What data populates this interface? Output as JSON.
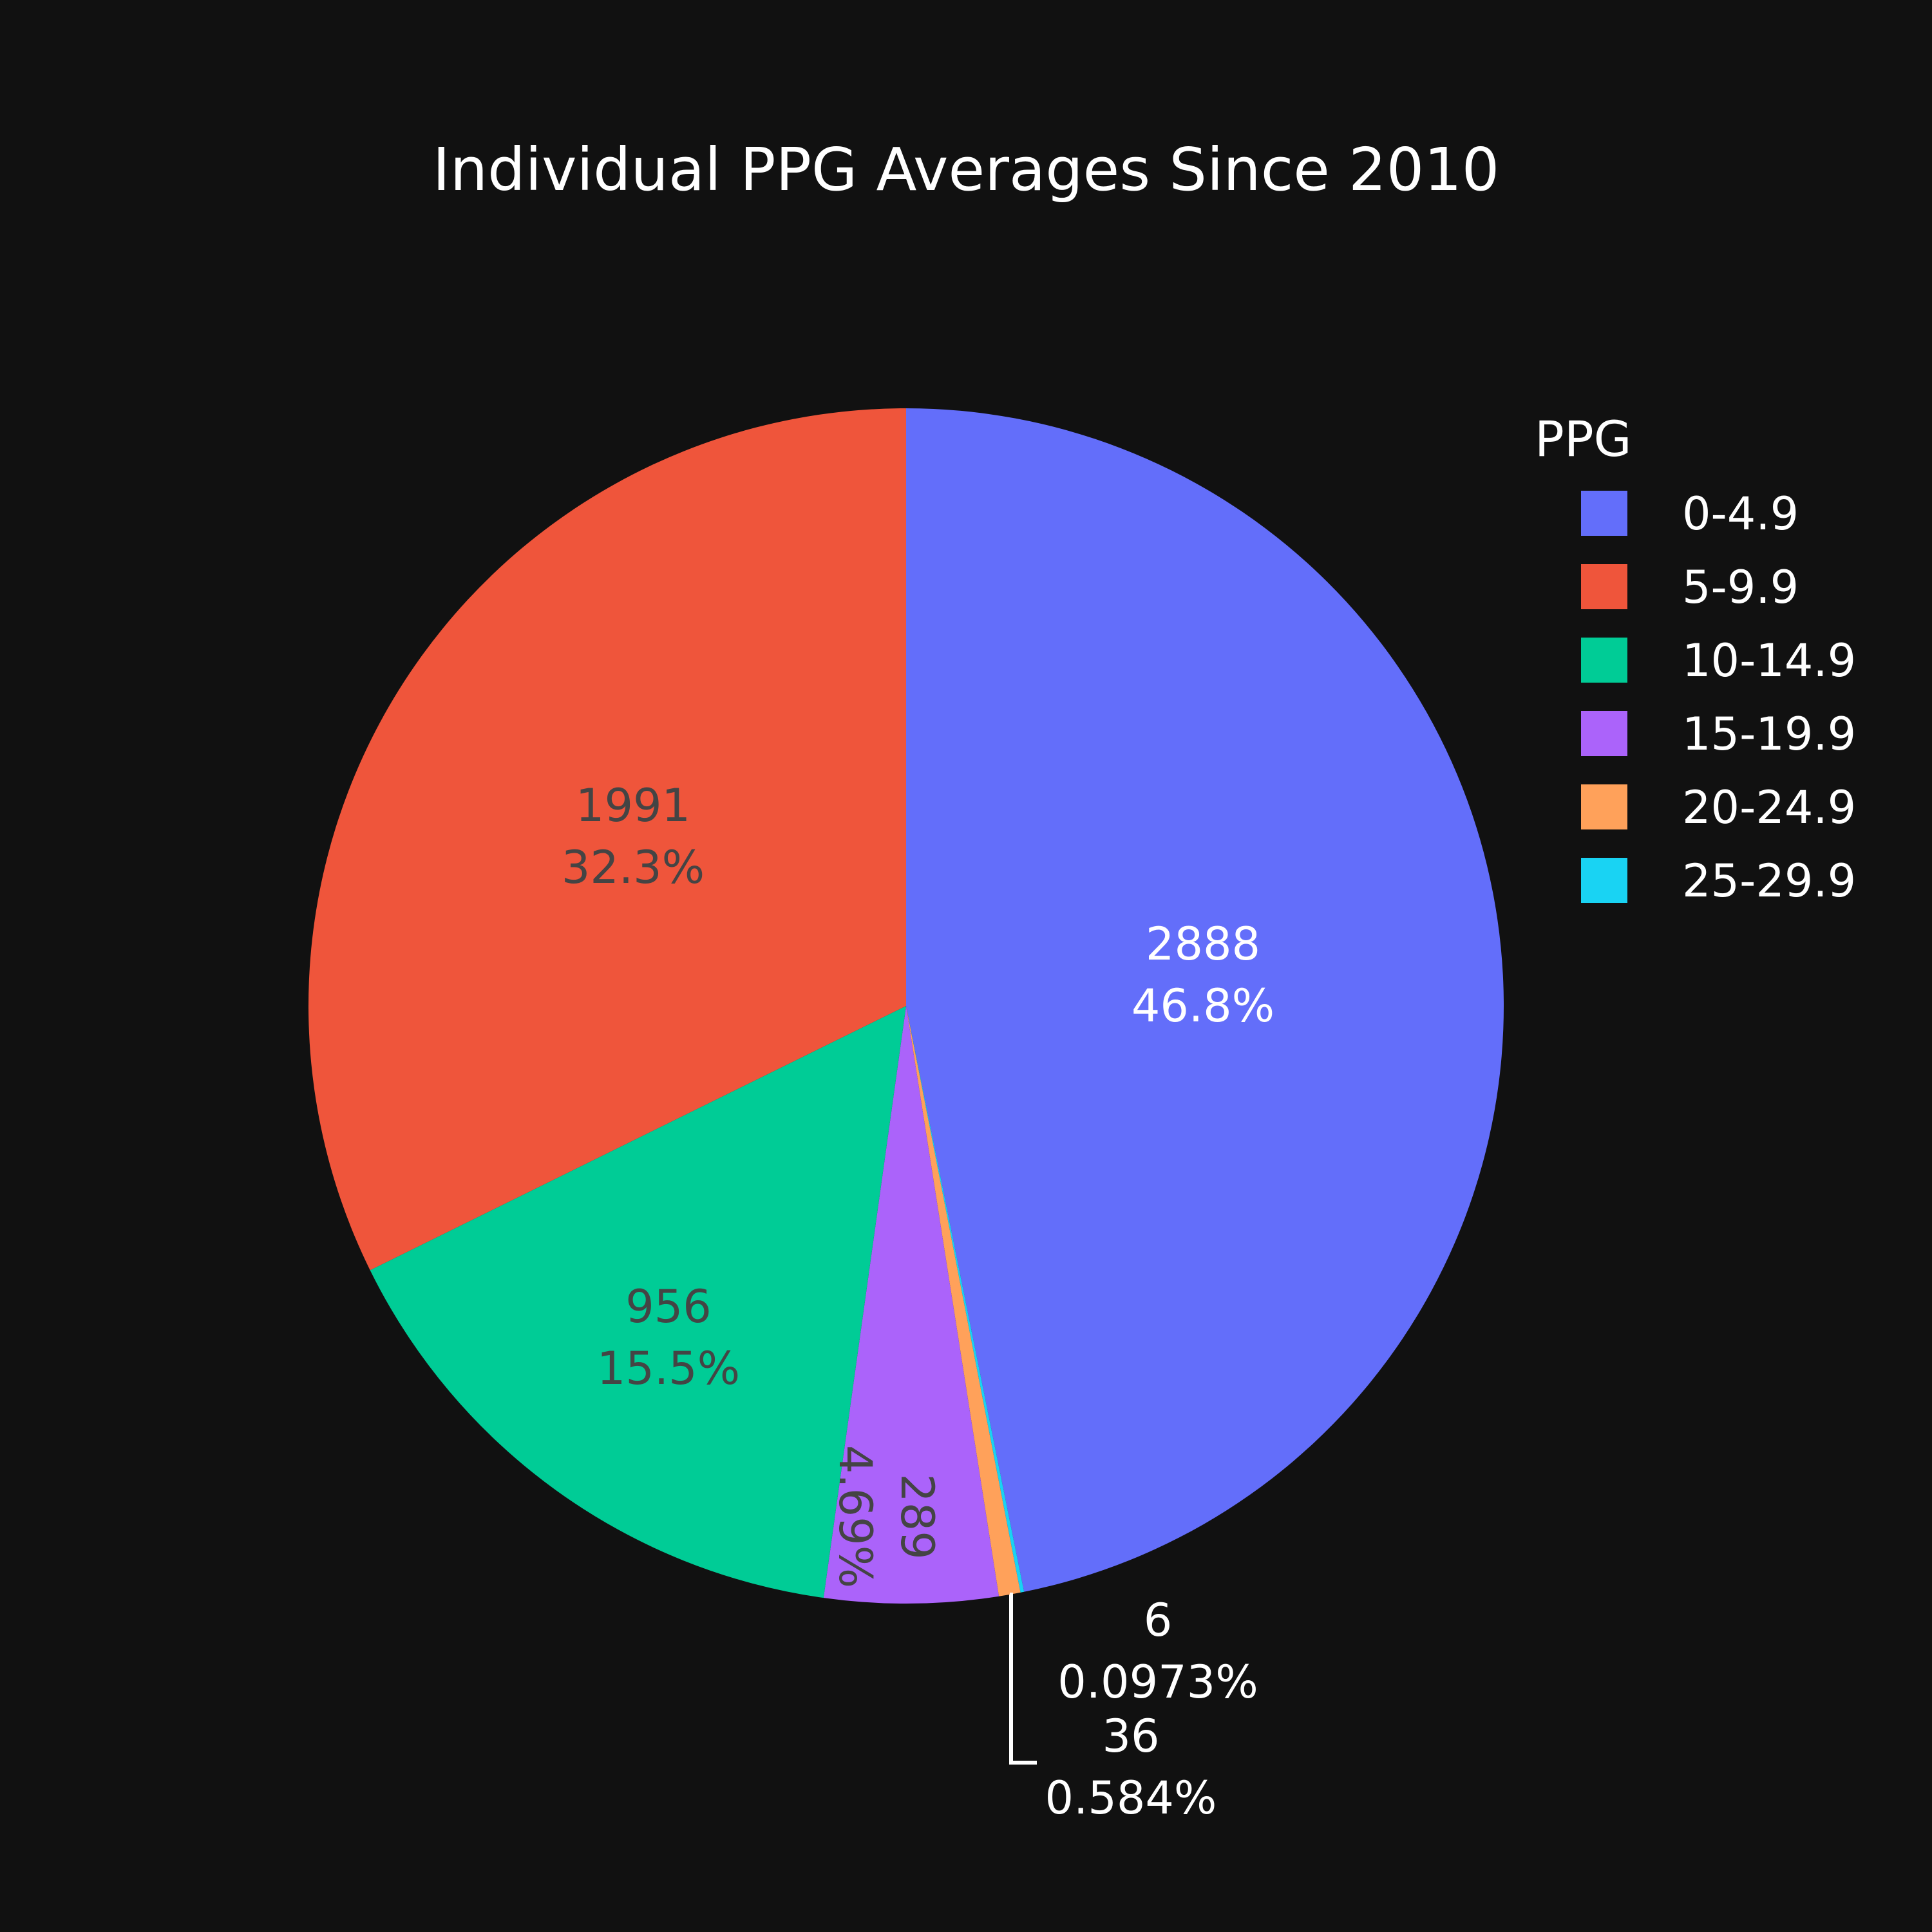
{
  "chart_data": {
    "type": "pie",
    "title": "Individual PPG Averages Since 2010",
    "legend_title": "PPG",
    "legend_position": "top-right",
    "direction": "clockwise",
    "start_angle": "12 o'clock",
    "background": "#111111",
    "slices": [
      {
        "label": "0-4.9",
        "value": 2888,
        "value_text": "2888",
        "percent_text": "46.8%",
        "color": "#636efa",
        "text_color": "#ffffff"
      },
      {
        "label": "25-29.9",
        "value": 6,
        "value_text": "6",
        "percent_text": "0.0973%",
        "color": "#19d3f3",
        "text_color": "#ffffff"
      },
      {
        "label": "20-24.9",
        "value": 36,
        "value_text": "36",
        "percent_text": "0.584%",
        "color": "#ffa15a",
        "text_color": "#ffffff"
      },
      {
        "label": "15-19.9",
        "value": 289,
        "value_text": "289",
        "percent_text": "4.69%",
        "color": "#ab63fa",
        "text_color": "#444444"
      },
      {
        "label": "10-14.9",
        "value": 956,
        "value_text": "956",
        "percent_text": "15.5%",
        "color": "#00cc96",
        "text_color": "#444444"
      },
      {
        "label": "5-9.9",
        "value": 1991,
        "value_text": "1991",
        "percent_text": "32.3%",
        "color": "#ef553b",
        "text_color": "#444444"
      }
    ],
    "legend_order": [
      "0-4.9",
      "5-9.9",
      "10-14.9",
      "15-19.9",
      "20-24.9",
      "25-29.9"
    ]
  }
}
